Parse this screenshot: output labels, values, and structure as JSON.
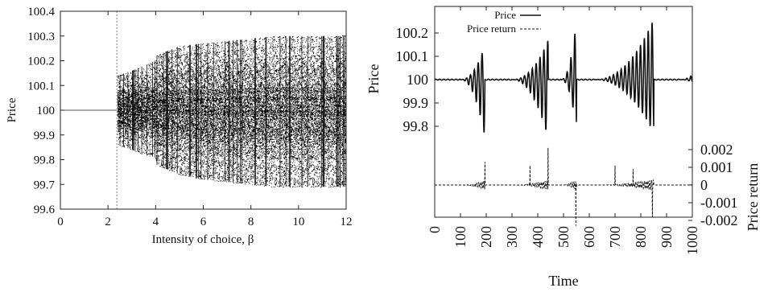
{
  "chart_data": [
    {
      "type": "scatter",
      "title": "",
      "xlabel": "Intensity of choice, β",
      "ylabel": "Price",
      "xlim": [
        0,
        12
      ],
      "ylim": [
        99.6,
        100.4
      ],
      "xticks": [
        "0",
        "2",
        "4",
        "6",
        "8",
        "10",
        "12"
      ],
      "yticks": [
        "99.6",
        "99.7",
        "99.8",
        "99.9",
        "100",
        "100.1",
        "100.2",
        "100.3",
        "100.4"
      ],
      "bifurcation_envelope": {
        "beta": [
          0,
          2.35,
          2.4,
          3.0,
          3.5,
          3.95,
          4.0,
          5,
          6,
          7,
          8,
          9,
          10,
          11,
          12
        ],
        "price_min": [
          100,
          100,
          99.86,
          99.84,
          99.82,
          99.81,
          99.78,
          99.74,
          99.72,
          99.71,
          99.7,
          99.69,
          99.69,
          99.69,
          99.69
        ],
        "price_max": [
          100,
          100,
          100.14,
          100.16,
          100.18,
          100.2,
          100.22,
          100.26,
          100.27,
          100.28,
          100.29,
          100.3,
          100.3,
          100.3,
          100.3
        ]
      },
      "dashed_vline_beta": 2.37,
      "grid": false
    },
    {
      "type": "line",
      "title": "",
      "xlabel": "Time",
      "ylabel": "Price",
      "ylabel_right": "Price return",
      "xlim": [
        0,
        1000
      ],
      "xticks": [
        "0",
        "100",
        "200",
        "300",
        "400",
        "500",
        "600",
        "700",
        "800",
        "900",
        "1000"
      ],
      "yticks_left": [
        "99.8",
        "99.9",
        "100",
        "100.1",
        "100.2"
      ],
      "yticks_right": [
        "0.002",
        "0.001",
        "0",
        "-0.001",
        "-0.002"
      ],
      "legend": [
        "Price",
        "Price return"
      ],
      "legend_position": "top-left",
      "series": [
        {
          "name": "Price",
          "style": "solid",
          "bursts": [
            {
              "start": 100,
              "end": 195,
              "peak_up": 100.15,
              "peak_down": 99.75
            },
            {
              "start": 300,
              "end": 440,
              "peak_up": 100.17,
              "peak_down": 99.75
            },
            {
              "start": 490,
              "end": 550,
              "peak_up": 100.25,
              "peak_down": 99.79
            },
            {
              "start": 620,
              "end": 850,
              "peak_up": 100.26,
              "peak_down": 99.77
            },
            {
              "start": 950,
              "end": 1000,
              "peak_up": 100.02,
              "peak_down": 99.99
            }
          ],
          "baseline": 100
        },
        {
          "name": "Price return",
          "style": "dashed",
          "baseline": 0,
          "spikes": [
            {
              "t": 195,
              "value": 0.0013
            },
            {
              "t": 370,
              "value": 0.0011
            },
            {
              "t": 440,
              "value": 0.0021
            },
            {
              "t": 548,
              "value": -0.0023
            },
            {
              "t": 700,
              "value": 0.0011
            },
            {
              "t": 770,
              "value": 0.0009
            },
            {
              "t": 845,
              "value": -0.0018
            }
          ]
        }
      ]
    }
  ]
}
